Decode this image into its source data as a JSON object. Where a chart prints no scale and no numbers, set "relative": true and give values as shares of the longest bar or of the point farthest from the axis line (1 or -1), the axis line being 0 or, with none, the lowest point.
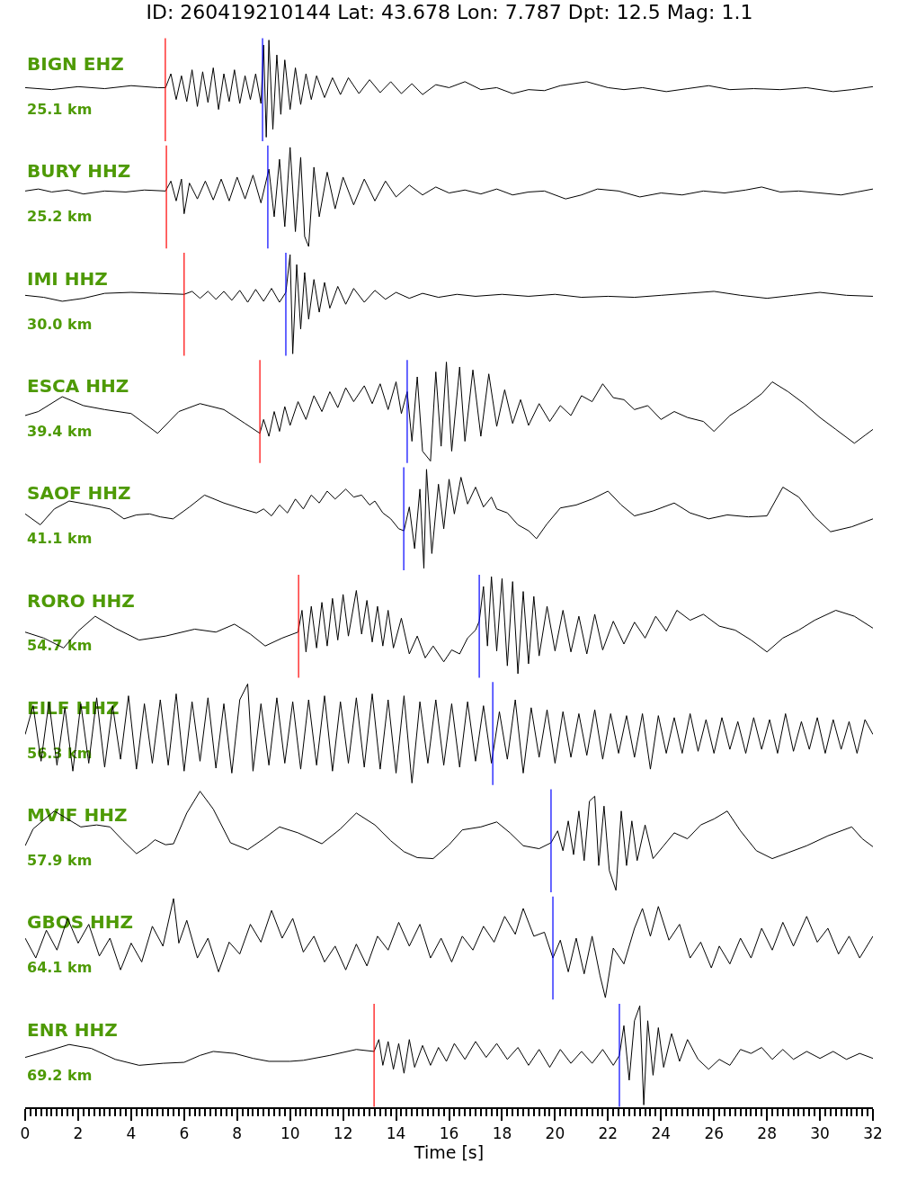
{
  "chart_data": [
    {
      "type": "line",
      "relative": true,
      "title": "ID: 260419210144 Lat: 43.678 Lon: 7.787 Dpt: 12.5 Mag: 1.1",
      "annotations": [
        "BIGN EHZ",
        "25.1 km"
      ],
      "xlim": [
        0,
        32
      ],
      "tick_labels": false,
      "ref_lines": [
        {
          "axis": "x",
          "value": 5.29,
          "color": "#ff0000"
        },
        {
          "axis": "x",
          "value": 8.96,
          "color": "#0000ff"
        }
      ],
      "x": [
        0,
        1,
        2,
        3,
        4,
        5,
        5.3,
        5.5,
        5.7,
        5.9,
        6.1,
        6.3,
        6.5,
        6.7,
        6.9,
        7.1,
        7.3,
        7.5,
        7.7,
        7.9,
        8.1,
        8.3,
        8.5,
        8.7,
        8.9,
        9,
        9.1,
        9.2,
        9.35,
        9.5,
        9.65,
        9.8,
        10,
        10.2,
        10.4,
        10.6,
        10.8,
        11,
        11.3,
        11.6,
        11.9,
        12.2,
        12.6,
        13,
        13.4,
        13.8,
        14.2,
        14.6,
        15,
        15.5,
        16,
        16.6,
        17.2,
        17.8,
        18.4,
        19,
        19.6,
        20.2,
        21.2,
        22,
        22.6,
        23.3,
        24.2,
        25,
        25.8,
        26.6,
        27.5,
        28.5,
        29.5,
        30.5,
        31.2,
        32
      ],
      "series": [
        {
          "color": "#000000",
          "values": [
            0.52,
            0.5,
            0.53,
            0.51,
            0.54,
            0.52,
            0.52,
            0.66,
            0.4,
            0.64,
            0.38,
            0.7,
            0.33,
            0.68,
            0.37,
            0.72,
            0.3,
            0.66,
            0.38,
            0.7,
            0.36,
            0.64,
            0.4,
            0.66,
            0.36,
            0.95,
            0.02,
            1.0,
            0.1,
            0.85,
            0.25,
            0.8,
            0.3,
            0.72,
            0.35,
            0.66,
            0.4,
            0.64,
            0.42,
            0.62,
            0.45,
            0.62,
            0.46,
            0.6,
            0.47,
            0.58,
            0.46,
            0.56,
            0.45,
            0.55,
            0.52,
            0.58,
            0.5,
            0.52,
            0.46,
            0.5,
            0.49,
            0.54,
            0.58,
            0.52,
            0.5,
            0.52,
            0.48,
            0.51,
            0.54,
            0.5,
            0.51,
            0.5,
            0.52,
            0.48,
            0.5,
            0.53
          ]
        }
      ]
    },
    {
      "type": "line",
      "relative": true,
      "annotations": [
        "BURY HHZ",
        "25.2 km"
      ],
      "xlim": [
        0,
        32
      ],
      "tick_labels": false,
      "ref_lines": [
        {
          "axis": "x",
          "value": 5.33,
          "color": "#ff0000"
        },
        {
          "axis": "x",
          "value": 9.16,
          "color": "#0000ff"
        }
      ],
      "x": [
        0,
        0.5,
        1,
        1.6,
        2.2,
        3,
        3.8,
        4.5,
        5.3,
        5.5,
        5.7,
        5.9,
        6,
        6.2,
        6.5,
        6.8,
        7.1,
        7.4,
        7.7,
        8,
        8.3,
        8.6,
        8.9,
        9.2,
        9.4,
        9.6,
        9.8,
        10,
        10.2,
        10.4,
        10.55,
        10.7,
        10.9,
        11.1,
        11.4,
        11.7,
        12,
        12.4,
        12.8,
        13.2,
        13.6,
        14,
        14.5,
        15,
        15.5,
        16,
        16.6,
        17.2,
        17.8,
        18.4,
        19,
        19.6,
        20.4,
        21,
        21.6,
        22.4,
        23.2,
        24,
        24.8,
        25.6,
        26.4,
        27.2,
        27.8,
        28.5,
        29.2,
        30,
        30.8,
        31.4,
        32
      ],
      "series": [
        {
          "color": "#000000",
          "values": [
            0.56,
            0.58,
            0.55,
            0.57,
            0.53,
            0.56,
            0.55,
            0.57,
            0.56,
            0.66,
            0.46,
            0.68,
            0.33,
            0.64,
            0.48,
            0.66,
            0.47,
            0.68,
            0.46,
            0.7,
            0.48,
            0.72,
            0.44,
            0.78,
            0.3,
            0.88,
            0.2,
            1.0,
            0.15,
            0.9,
            0.1,
            0.0,
            0.8,
            0.3,
            0.75,
            0.38,
            0.7,
            0.42,
            0.68,
            0.46,
            0.66,
            0.5,
            0.62,
            0.52,
            0.6,
            0.54,
            0.57,
            0.53,
            0.58,
            0.52,
            0.55,
            0.56,
            0.48,
            0.52,
            0.58,
            0.56,
            0.5,
            0.54,
            0.52,
            0.56,
            0.54,
            0.57,
            0.6,
            0.55,
            0.56,
            0.54,
            0.52,
            0.55,
            0.58
          ]
        }
      ]
    },
    {
      "type": "line",
      "relative": true,
      "annotations": [
        "IMI HHZ",
        "30.0 km"
      ],
      "xlim": [
        0,
        32
      ],
      "tick_labels": false,
      "ref_lines": [
        {
          "axis": "x",
          "value": 6.0,
          "color": "#ff0000"
        },
        {
          "axis": "x",
          "value": 9.84,
          "color": "#0000ff"
        }
      ],
      "x": [
        0,
        0.7,
        1.4,
        2.2,
        3,
        4,
        5,
        6,
        6.3,
        6.6,
        6.9,
        7.2,
        7.5,
        7.8,
        8.1,
        8.4,
        8.7,
        9,
        9.3,
        9.6,
        9.84,
        10,
        10.1,
        10.25,
        10.4,
        10.55,
        10.7,
        10.9,
        11.1,
        11.3,
        11.5,
        11.8,
        12.1,
        12.4,
        12.8,
        13.2,
        13.6,
        14,
        14.5,
        15,
        15.6,
        16.3,
        17,
        18,
        19,
        20,
        21,
        22,
        23,
        24,
        25,
        26,
        27,
        28,
        29,
        30,
        31,
        32
      ],
      "series": [
        {
          "color": "#000000",
          "values": [
            0.59,
            0.57,
            0.53,
            0.56,
            0.61,
            0.62,
            0.61,
            0.6,
            0.63,
            0.56,
            0.63,
            0.55,
            0.63,
            0.54,
            0.64,
            0.52,
            0.65,
            0.53,
            0.66,
            0.52,
            0.62,
            1.0,
            0.0,
            0.9,
            0.25,
            0.82,
            0.35,
            0.75,
            0.42,
            0.72,
            0.46,
            0.68,
            0.5,
            0.66,
            0.52,
            0.64,
            0.55,
            0.62,
            0.56,
            0.61,
            0.57,
            0.6,
            0.58,
            0.6,
            0.58,
            0.6,
            0.57,
            0.58,
            0.57,
            0.59,
            0.61,
            0.63,
            0.59,
            0.56,
            0.59,
            0.62,
            0.59,
            0.58
          ]
        }
      ]
    },
    {
      "type": "line",
      "relative": true,
      "annotations": [
        "ESCA HHZ",
        "39.4 km"
      ],
      "xlim": [
        0,
        32
      ],
      "tick_labels": false,
      "ref_lines": [
        {
          "axis": "x",
          "value": 8.86,
          "color": "#ff0000"
        },
        {
          "axis": "x",
          "value": 14.42,
          "color": "#0000ff"
        }
      ],
      "x": [
        0,
        0.5,
        1.4,
        2.2,
        3,
        4,
        5,
        5.8,
        6.6,
        7.5,
        8.3,
        8.86,
        9,
        9.2,
        9.4,
        9.6,
        9.8,
        10,
        10.3,
        10.6,
        10.9,
        11.2,
        11.5,
        11.8,
        12.1,
        12.4,
        12.8,
        13.1,
        13.4,
        13.7,
        14,
        14.2,
        14.42,
        14.6,
        14.8,
        15,
        15.3,
        15.5,
        15.7,
        15.9,
        16.1,
        16.4,
        16.6,
        16.9,
        17.2,
        17.5,
        17.8,
        18.1,
        18.4,
        18.7,
        19,
        19.4,
        19.8,
        20.2,
        20.6,
        21,
        21.4,
        21.8,
        22.2,
        22.6,
        23,
        23.5,
        24,
        24.5,
        25,
        25.6,
        26,
        26.6,
        27.2,
        27.8,
        28.2,
        28.8,
        29.4,
        30,
        30.6,
        31.3,
        31.7,
        32
      ],
      "series": [
        {
          "color": "#000000",
          "values": [
            0.46,
            0.5,
            0.65,
            0.56,
            0.52,
            0.48,
            0.28,
            0.5,
            0.58,
            0.52,
            0.38,
            0.28,
            0.42,
            0.25,
            0.5,
            0.3,
            0.55,
            0.36,
            0.6,
            0.42,
            0.66,
            0.5,
            0.7,
            0.54,
            0.74,
            0.6,
            0.76,
            0.58,
            0.78,
            0.52,
            0.8,
            0.48,
            0.7,
            0.2,
            0.85,
            0.1,
            0.0,
            0.9,
            0.15,
            1.0,
            0.1,
            0.95,
            0.2,
            0.92,
            0.25,
            0.88,
            0.35,
            0.72,
            0.38,
            0.62,
            0.36,
            0.58,
            0.4,
            0.56,
            0.46,
            0.66,
            0.6,
            0.78,
            0.64,
            0.62,
            0.52,
            0.56,
            0.42,
            0.5,
            0.44,
            0.4,
            0.3,
            0.46,
            0.56,
            0.68,
            0.8,
            0.7,
            0.58,
            0.44,
            0.32,
            0.18,
            0.26,
            0.32
          ]
        }
      ]
    },
    {
      "type": "line",
      "relative": true,
      "annotations": [
        "SAOF HHZ",
        "41.1 km"
      ],
      "xlim": [
        0,
        32
      ],
      "tick_labels": false,
      "ref_lines": [
        {
          "axis": "x",
          "value": 14.29,
          "color": "#0000ff"
        }
      ],
      "x": [
        0,
        0.57,
        1.1,
        1.66,
        2.5,
        3.2,
        3.73,
        4.2,
        4.7,
        5.1,
        5.58,
        6.2,
        6.77,
        7.5,
        8.2,
        8.73,
        9,
        9.3,
        9.6,
        9.9,
        10.2,
        10.5,
        10.8,
        11.1,
        11.4,
        11.7,
        12.1,
        12.4,
        12.7,
        13,
        13.2,
        13.5,
        13.8,
        14.1,
        14.3,
        14.5,
        14.7,
        14.9,
        15.05,
        15.15,
        15.35,
        15.6,
        15.8,
        16,
        16.2,
        16.45,
        16.7,
        17,
        17.3,
        17.6,
        17.8,
        18.2,
        18.6,
        19,
        19.3,
        19.7,
        20.2,
        20.8,
        21.4,
        22,
        22.5,
        23,
        23.7,
        24.5,
        25.1,
        25.8,
        26.5,
        27.3,
        28,
        28.6,
        29.2,
        29.8,
        30.4,
        31.2,
        32
      ],
      "series": [
        {
          "color": "#000000",
          "values": [
            0.55,
            0.44,
            0.6,
            0.68,
            0.64,
            0.6,
            0.5,
            0.54,
            0.55,
            0.52,
            0.5,
            0.62,
            0.74,
            0.66,
            0.6,
            0.56,
            0.6,
            0.53,
            0.64,
            0.56,
            0.7,
            0.6,
            0.74,
            0.66,
            0.78,
            0.7,
            0.8,
            0.72,
            0.74,
            0.64,
            0.68,
            0.56,
            0.5,
            0.4,
            0.38,
            0.62,
            0.2,
            0.8,
            0.0,
            1.0,
            0.15,
            0.85,
            0.4,
            0.9,
            0.55,
            0.92,
            0.65,
            0.82,
            0.62,
            0.72,
            0.6,
            0.56,
            0.44,
            0.38,
            0.3,
            0.45,
            0.61,
            0.64,
            0.7,
            0.78,
            0.64,
            0.53,
            0.58,
            0.66,
            0.56,
            0.5,
            0.54,
            0.52,
            0.53,
            0.82,
            0.72,
            0.52,
            0.37,
            0.42,
            0.5
          ]
        }
      ]
    },
    {
      "type": "line",
      "relative": true,
      "annotations": [
        "RORO HHZ",
        "54.7 km"
      ],
      "xlim": [
        0,
        32
      ],
      "tick_labels": false,
      "ref_lines": [
        {
          "axis": "x",
          "value": 10.32,
          "color": "#ff0000"
        },
        {
          "axis": "x",
          "value": 17.14,
          "color": "#0000ff"
        }
      ],
      "x": [
        0,
        0.7,
        1.45,
        2,
        2.64,
        3.4,
        4.3,
        5.3,
        6.4,
        7.2,
        7.9,
        8.5,
        9.06,
        9.7,
        10.3,
        10.45,
        10.6,
        10.8,
        11,
        11.2,
        11.4,
        11.6,
        11.8,
        12,
        12.2,
        12.5,
        12.7,
        12.9,
        13.1,
        13.3,
        13.5,
        13.7,
        13.9,
        14.2,
        14.5,
        14.8,
        15.1,
        15.4,
        15.8,
        16.1,
        16.4,
        16.7,
        17,
        17.14,
        17.3,
        17.45,
        17.6,
        17.8,
        18,
        18.2,
        18.4,
        18.6,
        18.8,
        19,
        19.2,
        19.4,
        19.7,
        20,
        20.3,
        20.6,
        20.9,
        21.2,
        21.5,
        21.8,
        22.2,
        22.6,
        23,
        23.4,
        23.8,
        24.2,
        24.6,
        25.1,
        25.6,
        26.2,
        26.8,
        27.4,
        28,
        28.6,
        29.2,
        29.8,
        30.6,
        31.3,
        32
      ],
      "series": [
        {
          "color": "#000000",
          "values": [
            0.44,
            0.38,
            0.28,
            0.45,
            0.6,
            0.48,
            0.36,
            0.4,
            0.47,
            0.44,
            0.52,
            0.42,
            0.3,
            0.38,
            0.44,
            0.66,
            0.24,
            0.7,
            0.28,
            0.74,
            0.3,
            0.78,
            0.36,
            0.82,
            0.4,
            0.86,
            0.42,
            0.76,
            0.34,
            0.7,
            0.3,
            0.66,
            0.28,
            0.58,
            0.22,
            0.4,
            0.18,
            0.3,
            0.14,
            0.26,
            0.22,
            0.38,
            0.46,
            0.55,
            0.9,
            0.3,
            1.0,
            0.25,
            0.98,
            0.1,
            0.95,
            0.02,
            0.85,
            0.12,
            0.8,
            0.2,
            0.7,
            0.25,
            0.66,
            0.24,
            0.6,
            0.22,
            0.62,
            0.26,
            0.55,
            0.32,
            0.54,
            0.38,
            0.6,
            0.45,
            0.66,
            0.56,
            0.62,
            0.5,
            0.46,
            0.36,
            0.24,
            0.38,
            0.46,
            0.56,
            0.66,
            0.6,
            0.48
          ]
        }
      ]
    },
    {
      "type": "line",
      "relative": true,
      "annotations": [
        "EILF HHZ",
        "56.3 km"
      ],
      "xlim": [
        0,
        32
      ],
      "tick_labels": false,
      "ref_lines": [
        {
          "axis": "x",
          "value": 17.65,
          "color": "#0000ff"
        }
      ],
      "x": [
        0,
        0.3,
        0.6,
        0.9,
        1.2,
        1.5,
        1.8,
        2.1,
        2.4,
        2.7,
        3,
        3.3,
        3.6,
        3.9,
        4.2,
        4.5,
        4.8,
        5.1,
        5.4,
        5.7,
        6,
        6.3,
        6.6,
        6.9,
        7.2,
        7.5,
        7.8,
        8.1,
        8.4,
        8.6,
        8.9,
        9.2,
        9.5,
        9.8,
        10.1,
        10.4,
        10.7,
        11,
        11.3,
        11.6,
        11.9,
        12.2,
        12.5,
        12.8,
        13.1,
        13.4,
        13.7,
        14,
        14.3,
        14.6,
        14.9,
        15.2,
        15.5,
        15.8,
        16.1,
        16.4,
        16.7,
        17,
        17.3,
        17.6,
        17.9,
        18.2,
        18.5,
        18.8,
        19.1,
        19.4,
        19.7,
        20,
        20.3,
        20.6,
        20.9,
        21.2,
        21.5,
        21.8,
        22.1,
        22.4,
        22.7,
        23,
        23.3,
        23.6,
        23.9,
        24.2,
        24.5,
        24.8,
        25.1,
        25.4,
        25.7,
        26,
        26.3,
        26.6,
        26.9,
        27.2,
        27.5,
        27.8,
        28.1,
        28.4,
        28.7,
        29,
        29.3,
        29.6,
        29.9,
        30.2,
        30.5,
        30.8,
        31.1,
        31.4,
        31.7,
        32
      ],
      "series": [
        {
          "color": "#000000",
          "values": [
            0.49,
            0.78,
            0.22,
            0.82,
            0.18,
            0.76,
            0.12,
            0.8,
            0.2,
            0.86,
            0.16,
            0.78,
            0.24,
            0.88,
            0.14,
            0.8,
            0.2,
            0.84,
            0.18,
            0.9,
            0.12,
            0.82,
            0.22,
            0.86,
            0.15,
            0.8,
            0.1,
            0.84,
            1.0,
            0.12,
            0.8,
            0.18,
            0.86,
            0.2,
            0.82,
            0.14,
            0.84,
            0.18,
            0.88,
            0.12,
            0.82,
            0.2,
            0.86,
            0.16,
            0.9,
            0.14,
            0.84,
            0.1,
            0.88,
            0.0,
            0.82,
            0.2,
            0.84,
            0.18,
            0.8,
            0.16,
            0.82,
            0.22,
            0.78,
            0.2,
            0.72,
            0.24,
            0.84,
            0.1,
            0.76,
            0.26,
            0.74,
            0.2,
            0.72,
            0.26,
            0.7,
            0.28,
            0.74,
            0.24,
            0.7,
            0.3,
            0.68,
            0.26,
            0.7,
            0.14,
            0.68,
            0.3,
            0.66,
            0.3,
            0.7,
            0.32,
            0.64,
            0.3,
            0.66,
            0.34,
            0.62,
            0.3,
            0.66,
            0.34,
            0.64,
            0.3,
            0.7,
            0.32,
            0.62,
            0.34,
            0.66,
            0.3,
            0.64,
            0.34,
            0.62,
            0.3,
            0.64,
            0.49
          ]
        }
      ]
    },
    {
      "type": "line",
      "relative": true,
      "annotations": [
        "MVIF HHZ",
        "57.9 km"
      ],
      "xlim": [
        0,
        32
      ],
      "tick_labels": false,
      "ref_lines": [
        {
          "axis": "x",
          "value": 19.85,
          "color": "#0000ff"
        }
      ],
      "x": [
        0,
        0.3,
        1.1,
        1.6,
        2.1,
        2.7,
        3.2,
        3.7,
        4.2,
        4.6,
        4.9,
        5.3,
        5.6,
        6.1,
        6.6,
        7.1,
        7.75,
        8.4,
        9,
        9.6,
        10.3,
        11.2,
        11.9,
        12.5,
        13.2,
        13.8,
        14.3,
        14.8,
        15.4,
        16,
        16.5,
        17.2,
        17.8,
        18.3,
        18.8,
        19.4,
        19.85,
        20.1,
        20.3,
        20.5,
        20.7,
        20.9,
        21.1,
        21.3,
        21.5,
        21.65,
        21.85,
        22.05,
        22.3,
        22.5,
        22.7,
        22.9,
        23.1,
        23.4,
        23.7,
        24.1,
        24.5,
        25,
        25.5,
        26,
        26.5,
        27,
        27.6,
        28.2,
        28.8,
        29.5,
        30.3,
        31.2,
        31.6,
        32
      ],
      "series": [
        {
          "color": "#000000",
          "values": [
            0.45,
            0.62,
            0.8,
            0.72,
            0.64,
            0.66,
            0.64,
            0.5,
            0.37,
            0.44,
            0.51,
            0.46,
            0.47,
            0.78,
            1.0,
            0.82,
            0.48,
            0.41,
            0.52,
            0.64,
            0.58,
            0.47,
            0.62,
            0.78,
            0.66,
            0.5,
            0.39,
            0.33,
            0.32,
            0.46,
            0.61,
            0.64,
            0.69,
            0.58,
            0.45,
            0.42,
            0.48,
            0.6,
            0.4,
            0.7,
            0.36,
            0.8,
            0.3,
            0.9,
            0.95,
            0.25,
            0.85,
            0.2,
            0.0,
            0.8,
            0.25,
            0.7,
            0.3,
            0.66,
            0.32,
            0.45,
            0.58,
            0.52,
            0.66,
            0.72,
            0.8,
            0.6,
            0.4,
            0.32,
            0.38,
            0.45,
            0.55,
            0.64,
            0.52,
            0.44
          ]
        }
      ]
    },
    {
      "type": "line",
      "relative": true,
      "annotations": [
        "GBOS HHZ",
        "64.1 km"
      ],
      "xlim": [
        0,
        32
      ],
      "tick_labels": false,
      "ref_lines": [
        {
          "axis": "x",
          "value": 19.92,
          "color": "#0000ff"
        }
      ],
      "x": [
        0,
        0.4,
        0.8,
        1.2,
        1.6,
        2,
        2.4,
        2.8,
        3.2,
        3.6,
        4,
        4.4,
        4.8,
        5.2,
        5.6,
        5.8,
        6.1,
        6.5,
        6.9,
        7.3,
        7.7,
        8.1,
        8.5,
        8.9,
        9.3,
        9.7,
        10.1,
        10.5,
        10.9,
        11.3,
        11.7,
        12.1,
        12.5,
        12.9,
        13.3,
        13.7,
        14.1,
        14.5,
        14.9,
        15.3,
        15.7,
        16.1,
        16.5,
        16.9,
        17.3,
        17.7,
        18.1,
        18.5,
        18.8,
        19.2,
        19.6,
        19.92,
        20.2,
        20.5,
        20.8,
        21.1,
        21.4,
        21.7,
        21.9,
        22.2,
        22.6,
        23,
        23.3,
        23.6,
        23.9,
        24.3,
        24.7,
        25.1,
        25.5,
        25.9,
        26.2,
        26.6,
        27,
        27.4,
        27.8,
        28.2,
        28.6,
        29,
        29.5,
        29.9,
        30.3,
        30.7,
        31.1,
        31.5,
        32
      ],
      "series": [
        {
          "color": "#000000",
          "values": [
            0.6,
            0.4,
            0.68,
            0.48,
            0.8,
            0.55,
            0.74,
            0.42,
            0.6,
            0.28,
            0.55,
            0.36,
            0.72,
            0.52,
            1.0,
            0.55,
            0.78,
            0.4,
            0.6,
            0.26,
            0.56,
            0.44,
            0.74,
            0.56,
            0.88,
            0.6,
            0.8,
            0.46,
            0.62,
            0.36,
            0.52,
            0.28,
            0.54,
            0.32,
            0.62,
            0.48,
            0.76,
            0.52,
            0.74,
            0.4,
            0.6,
            0.36,
            0.62,
            0.48,
            0.72,
            0.56,
            0.82,
            0.64,
            0.9,
            0.62,
            0.66,
            0.4,
            0.58,
            0.26,
            0.6,
            0.24,
            0.62,
            0.22,
            0.0,
            0.5,
            0.34,
            0.7,
            0.9,
            0.62,
            0.92,
            0.58,
            0.74,
            0.4,
            0.56,
            0.3,
            0.52,
            0.34,
            0.6,
            0.4,
            0.7,
            0.48,
            0.76,
            0.52,
            0.82,
            0.56,
            0.7,
            0.44,
            0.62,
            0.4,
            0.62
          ]
        }
      ]
    },
    {
      "type": "line",
      "relative": true,
      "annotations": [
        "ENR HHZ",
        "69.2 km"
      ],
      "xlim": [
        0,
        32
      ],
      "tick_labels": "x",
      "xlabel": "Time [s]",
      "ref_lines": [
        {
          "axis": "x",
          "value": 13.17,
          "color": "#ff0000"
        },
        {
          "axis": "x",
          "value": 22.43,
          "color": "#0000ff"
        }
      ],
      "xticks": [
        0,
        {
          "value": 0.2,
          "label": null
        },
        {
          "value": 0.4,
          "label": null
        },
        {
          "value": 0.6,
          "label": null
        },
        {
          "value": 0.8,
          "label": null
        },
        {
          "value": 1,
          "label": null
        },
        {
          "value": 1.2,
          "label": null
        },
        {
          "value": 1.4,
          "label": null
        },
        {
          "value": 1.6,
          "label": null
        },
        {
          "value": 1.8,
          "label": null
        },
        2,
        {
          "value": 2.2,
          "label": null
        },
        {
          "value": 2.4,
          "label": null
        },
        {
          "value": 2.6,
          "label": null
        },
        {
          "value": 2.8,
          "label": null
        },
        {
          "value": 3,
          "label": null
        },
        {
          "value": 3.2,
          "label": null
        },
        {
          "value": 3.4,
          "label": null
        },
        {
          "value": 3.6,
          "label": null
        },
        {
          "value": 3.8,
          "label": null
        },
        4,
        {
          "value": 4.2,
          "label": null
        },
        {
          "value": 4.4,
          "label": null
        },
        {
          "value": 4.6,
          "label": null
        },
        {
          "value": 4.8,
          "label": null
        },
        {
          "value": 5,
          "label": null
        },
        {
          "value": 5.2,
          "label": null
        },
        {
          "value": 5.4,
          "label": null
        },
        {
          "value": 5.6,
          "label": null
        },
        {
          "value": 5.8,
          "label": null
        },
        6,
        {
          "value": 6.2,
          "label": null
        },
        {
          "value": 6.4,
          "label": null
        },
        {
          "value": 6.6,
          "label": null
        },
        {
          "value": 6.8,
          "label": null
        },
        {
          "value": 7,
          "label": null
        },
        {
          "value": 7.2,
          "label": null
        },
        {
          "value": 7.4,
          "label": null
        },
        {
          "value": 7.6,
          "label": null
        },
        {
          "value": 7.8,
          "label": null
        },
        8,
        {
          "value": 8.2,
          "label": null
        },
        {
          "value": 8.4,
          "label": null
        },
        {
          "value": 8.6,
          "label": null
        },
        {
          "value": 8.8,
          "label": null
        },
        {
          "value": 9,
          "label": null
        },
        {
          "value": 9.2,
          "label": null
        },
        {
          "value": 9.4,
          "label": null
        },
        {
          "value": 9.6,
          "label": null
        },
        {
          "value": 9.8,
          "label": null
        },
        10,
        {
          "value": 10.2,
          "label": null
        },
        {
          "value": 10.4,
          "label": null
        },
        {
          "value": 10.6,
          "label": null
        },
        {
          "value": 10.8,
          "label": null
        },
        {
          "value": 11,
          "label": null
        },
        {
          "value": 11.2,
          "label": null
        },
        {
          "value": 11.4,
          "label": null
        },
        {
          "value": 11.6,
          "label": null
        },
        {
          "value": 11.8,
          "label": null
        },
        12,
        {
          "value": 12.2,
          "label": null
        },
        {
          "value": 12.4,
          "label": null
        },
        {
          "value": 12.6,
          "label": null
        },
        {
          "value": 12.8,
          "label": null
        },
        {
          "value": 13,
          "label": null
        },
        {
          "value": 13.2,
          "label": null
        },
        {
          "value": 13.4,
          "label": null
        },
        {
          "value": 13.6,
          "label": null
        },
        {
          "value": 13.8,
          "label": null
        },
        14,
        {
          "value": 14.2,
          "label": null
        },
        {
          "value": 14.4,
          "label": null
        },
        {
          "value": 14.6,
          "label": null
        },
        {
          "value": 14.8,
          "label": null
        },
        {
          "value": 15,
          "label": null
        },
        {
          "value": 15.2,
          "label": null
        },
        {
          "value": 15.4,
          "label": null
        },
        {
          "value": 15.6,
          "label": null
        },
        {
          "value": 15.8,
          "label": null
        },
        16,
        {
          "value": 16.2,
          "label": null
        },
        {
          "value": 16.4,
          "label": null
        },
        {
          "value": 16.6,
          "label": null
        },
        {
          "value": 16.8,
          "label": null
        },
        {
          "value": 17,
          "label": null
        },
        {
          "value": 17.2,
          "label": null
        },
        {
          "value": 17.4,
          "label": null
        },
        {
          "value": 17.6,
          "label": null
        },
        {
          "value": 17.8,
          "label": null
        },
        18,
        {
          "value": 18.2,
          "label": null
        },
        {
          "value": 18.4,
          "label": null
        },
        {
          "value": 18.6,
          "label": null
        },
        {
          "value": 18.8,
          "label": null
        },
        {
          "value": 19,
          "label": null
        },
        {
          "value": 19.2,
          "label": null
        },
        {
          "value": 19.4,
          "label": null
        },
        {
          "value": 19.6,
          "label": null
        },
        {
          "value": 19.8,
          "label": null
        },
        20,
        {
          "value": 20.2,
          "label": null
        },
        {
          "value": 20.4,
          "label": null
        },
        {
          "value": 20.6,
          "label": null
        },
        {
          "value": 20.8,
          "label": null
        },
        {
          "value": 21,
          "label": null
        },
        {
          "value": 21.2,
          "label": null
        },
        {
          "value": 21.4,
          "label": null
        },
        {
          "value": 21.6,
          "label": null
        },
        {
          "value": 21.8,
          "label": null
        },
        22,
        {
          "value": 22.2,
          "label": null
        },
        {
          "value": 22.4,
          "label": null
        },
        {
          "value": 22.6,
          "label": null
        },
        {
          "value": 22.8,
          "label": null
        },
        {
          "value": 23,
          "label": null
        },
        {
          "value": 23.2,
          "label": null
        },
        {
          "value": 23.4,
          "label": null
        },
        {
          "value": 23.6,
          "label": null
        },
        {
          "value": 23.8,
          "label": null
        },
        24,
        {
          "value": 24.2,
          "label": null
        },
        {
          "value": 24.4,
          "label": null
        },
        {
          "value": 24.6,
          "label": null
        },
        {
          "value": 24.8,
          "label": null
        },
        {
          "value": 25,
          "label": null
        },
        {
          "value": 25.2,
          "label": null
        },
        {
          "value": 25.4,
          "label": null
        },
        {
          "value": 25.6,
          "label": null
        },
        {
          "value": 25.8,
          "label": null
        },
        26,
        {
          "value": 26.2,
          "label": null
        },
        {
          "value": 26.4,
          "label": null
        },
        {
          "value": 26.6,
          "label": null
        },
        {
          "value": 26.8,
          "label": null
        },
        {
          "value": 27,
          "label": null
        },
        {
          "value": 27.2,
          "label": null
        },
        {
          "value": 27.4,
          "label": null
        },
        {
          "value": 27.6,
          "label": null
        },
        {
          "value": 27.8,
          "label": null
        },
        28,
        {
          "value": 28.2,
          "label": null
        },
        {
          "value": 28.4,
          "label": null
        },
        {
          "value": 28.6,
          "label": null
        },
        {
          "value": 28.8,
          "label": null
        },
        {
          "value": 29,
          "label": null
        },
        {
          "value": 29.2,
          "label": null
        },
        {
          "value": 29.4,
          "label": null
        },
        {
          "value": 29.6,
          "label": null
        },
        {
          "value": 29.8,
          "label": null
        },
        30,
        {
          "value": 30.2,
          "label": null
        },
        {
          "value": 30.4,
          "label": null
        },
        {
          "value": 30.6,
          "label": null
        },
        {
          "value": 30.8,
          "label": null
        },
        {
          "value": 31,
          "label": null
        },
        {
          "value": 31.2,
          "label": null
        },
        {
          "value": 31.4,
          "label": null
        },
        {
          "value": 31.6,
          "label": null
        },
        {
          "value": 31.8,
          "label": null
        },
        32
      ],
      "x": [
        0,
        0.8,
        1.66,
        2.5,
        3.4,
        4.3,
        5.2,
        6,
        6.6,
        7.1,
        7.9,
        8.6,
        9.2,
        10,
        10.5,
        11.5,
        12.5,
        13.17,
        13.35,
        13.5,
        13.7,
        13.9,
        14.1,
        14.3,
        14.5,
        14.7,
        15,
        15.3,
        15.6,
        15.9,
        16.2,
        16.6,
        17,
        17.4,
        17.8,
        18.2,
        18.6,
        19,
        19.4,
        19.8,
        20.2,
        20.6,
        21,
        21.4,
        21.8,
        22.2,
        22.43,
        22.6,
        22.8,
        23,
        23.2,
        23.35,
        23.5,
        23.7,
        23.9,
        24.1,
        24.4,
        24.7,
        25,
        25.4,
        25.8,
        26.2,
        26.6,
        27,
        27.4,
        27.8,
        28.2,
        28.6,
        29,
        29.5,
        30,
        30.5,
        31,
        31.5,
        32
      ],
      "series": [
        {
          "color": "#000000",
          "values": [
            0.48,
            0.54,
            0.61,
            0.57,
            0.46,
            0.4,
            0.42,
            0.43,
            0.5,
            0.54,
            0.52,
            0.47,
            0.44,
            0.44,
            0.45,
            0.5,
            0.56,
            0.54,
            0.66,
            0.4,
            0.64,
            0.36,
            0.62,
            0.32,
            0.66,
            0.38,
            0.6,
            0.4,
            0.58,
            0.44,
            0.62,
            0.46,
            0.64,
            0.48,
            0.62,
            0.46,
            0.58,
            0.4,
            0.56,
            0.38,
            0.56,
            0.42,
            0.54,
            0.42,
            0.56,
            0.4,
            0.5,
            0.8,
            0.25,
            0.85,
            1.0,
            0.0,
            0.85,
            0.3,
            0.78,
            0.38,
            0.72,
            0.44,
            0.66,
            0.46,
            0.36,
            0.46,
            0.4,
            0.56,
            0.52,
            0.58,
            0.46,
            0.56,
            0.46,
            0.54,
            0.47,
            0.54,
            0.46,
            0.52,
            0.47
          ]
        }
      ]
    }
  ]
}
